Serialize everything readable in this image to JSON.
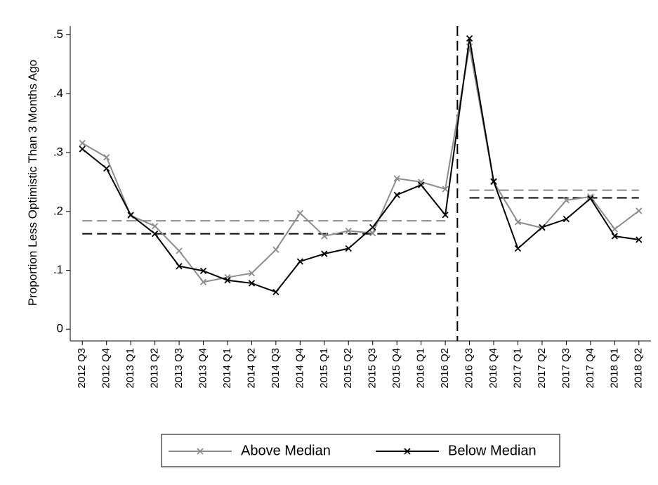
{
  "chart_data": {
    "type": "line",
    "y_label": "Proportion Less Optimistic Than 3 Months Ago",
    "categories": [
      "2012 Q3",
      "2012 Q4",
      "2013 Q1",
      "2013 Q2",
      "2013 Q3",
      "2013 Q4",
      "2014 Q1",
      "2014 Q2",
      "2014 Q3",
      "2014 Q4",
      "2015 Q1",
      "2015 Q2",
      "2015 Q3",
      "2015 Q4",
      "2016 Q1",
      "2016 Q2",
      "2016 Q3",
      "2016 Q4",
      "2017 Q1",
      "2017 Q2",
      "2017 Q3",
      "2017 Q4",
      "2018 Q1",
      "2018 Q2"
    ],
    "series": [
      {
        "name": "Above Median",
        "color": "#8c8c8c",
        "values": [
          0.316,
          0.292,
          0.193,
          0.175,
          0.133,
          0.08,
          0.088,
          0.095,
          0.135,
          0.197,
          0.158,
          0.167,
          0.163,
          0.256,
          0.25,
          0.238,
          0.48,
          0.25,
          0.182,
          0.172,
          0.219,
          0.225,
          0.17,
          0.201
        ]
      },
      {
        "name": "Below Median",
        "color": "#000000",
        "values": [
          0.306,
          0.273,
          0.194,
          0.162,
          0.107,
          0.099,
          0.083,
          0.078,
          0.063,
          0.115,
          0.128,
          0.137,
          0.173,
          0.228,
          0.245,
          0.194,
          0.494,
          0.251,
          0.137,
          0.173,
          0.187,
          0.222,
          0.158,
          0.152
        ]
      }
    ],
    "periods": [
      {
        "first": "2012 Q3",
        "last": "2016 Q2",
        "means": [
          0.184,
          0.162
        ]
      },
      {
        "first": "2016 Q3",
        "last": "2018 Q2",
        "means": [
          0.236,
          0.223
        ]
      }
    ],
    "ylim": [
      -0.02,
      0.515
    ],
    "yticks": [
      0,
      {
        "value": 0.1,
        "label": ".1"
      },
      {
        "value": 0.2,
        "label": ".2"
      },
      {
        "value": 0.3,
        "label": ".3"
      },
      {
        "value": 0.4,
        "label": ".4"
      },
      {
        "value": 0.5,
        "label": ".5"
      }
    ]
  }
}
